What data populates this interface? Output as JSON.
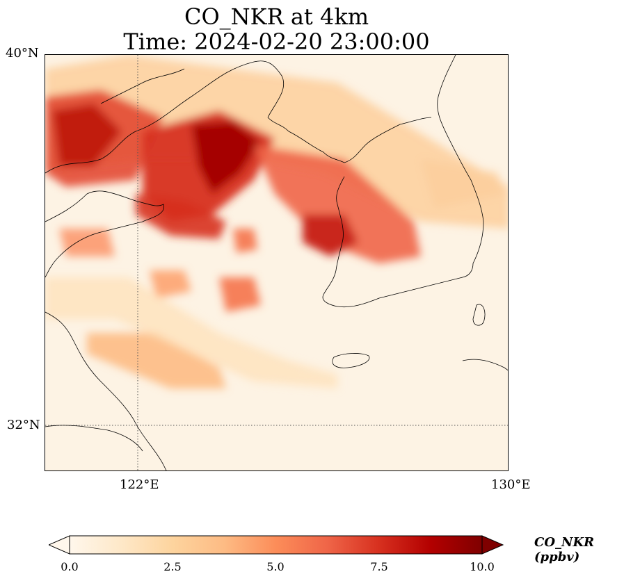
{
  "title": {
    "line1": "CO_NKR at 4km",
    "line2": "Time: 2024-02-20 23:00:00"
  },
  "axes": {
    "lat_ticks": [
      "40°N",
      "32°N"
    ],
    "lon_ticks": [
      "122°E",
      "130°E"
    ],
    "gridlines": "dotted at 122°E and 32°N"
  },
  "colorbar": {
    "label": "CO_NKR (ppbv)",
    "ticks": [
      "0.0",
      "2.5",
      "5.0",
      "7.5",
      "10.0"
    ],
    "range": [
      0,
      10
    ],
    "extend": "both",
    "colormap": "OrRd",
    "colors": [
      "#fff7ec",
      "#fee8c8",
      "#fdd49e",
      "#fdbb84",
      "#fc8d59",
      "#ef6548",
      "#d7301f",
      "#b30000",
      "#7f0000"
    ]
  },
  "map": {
    "background_color": "#fdf3e4",
    "coastline_color": "#000000"
  }
}
